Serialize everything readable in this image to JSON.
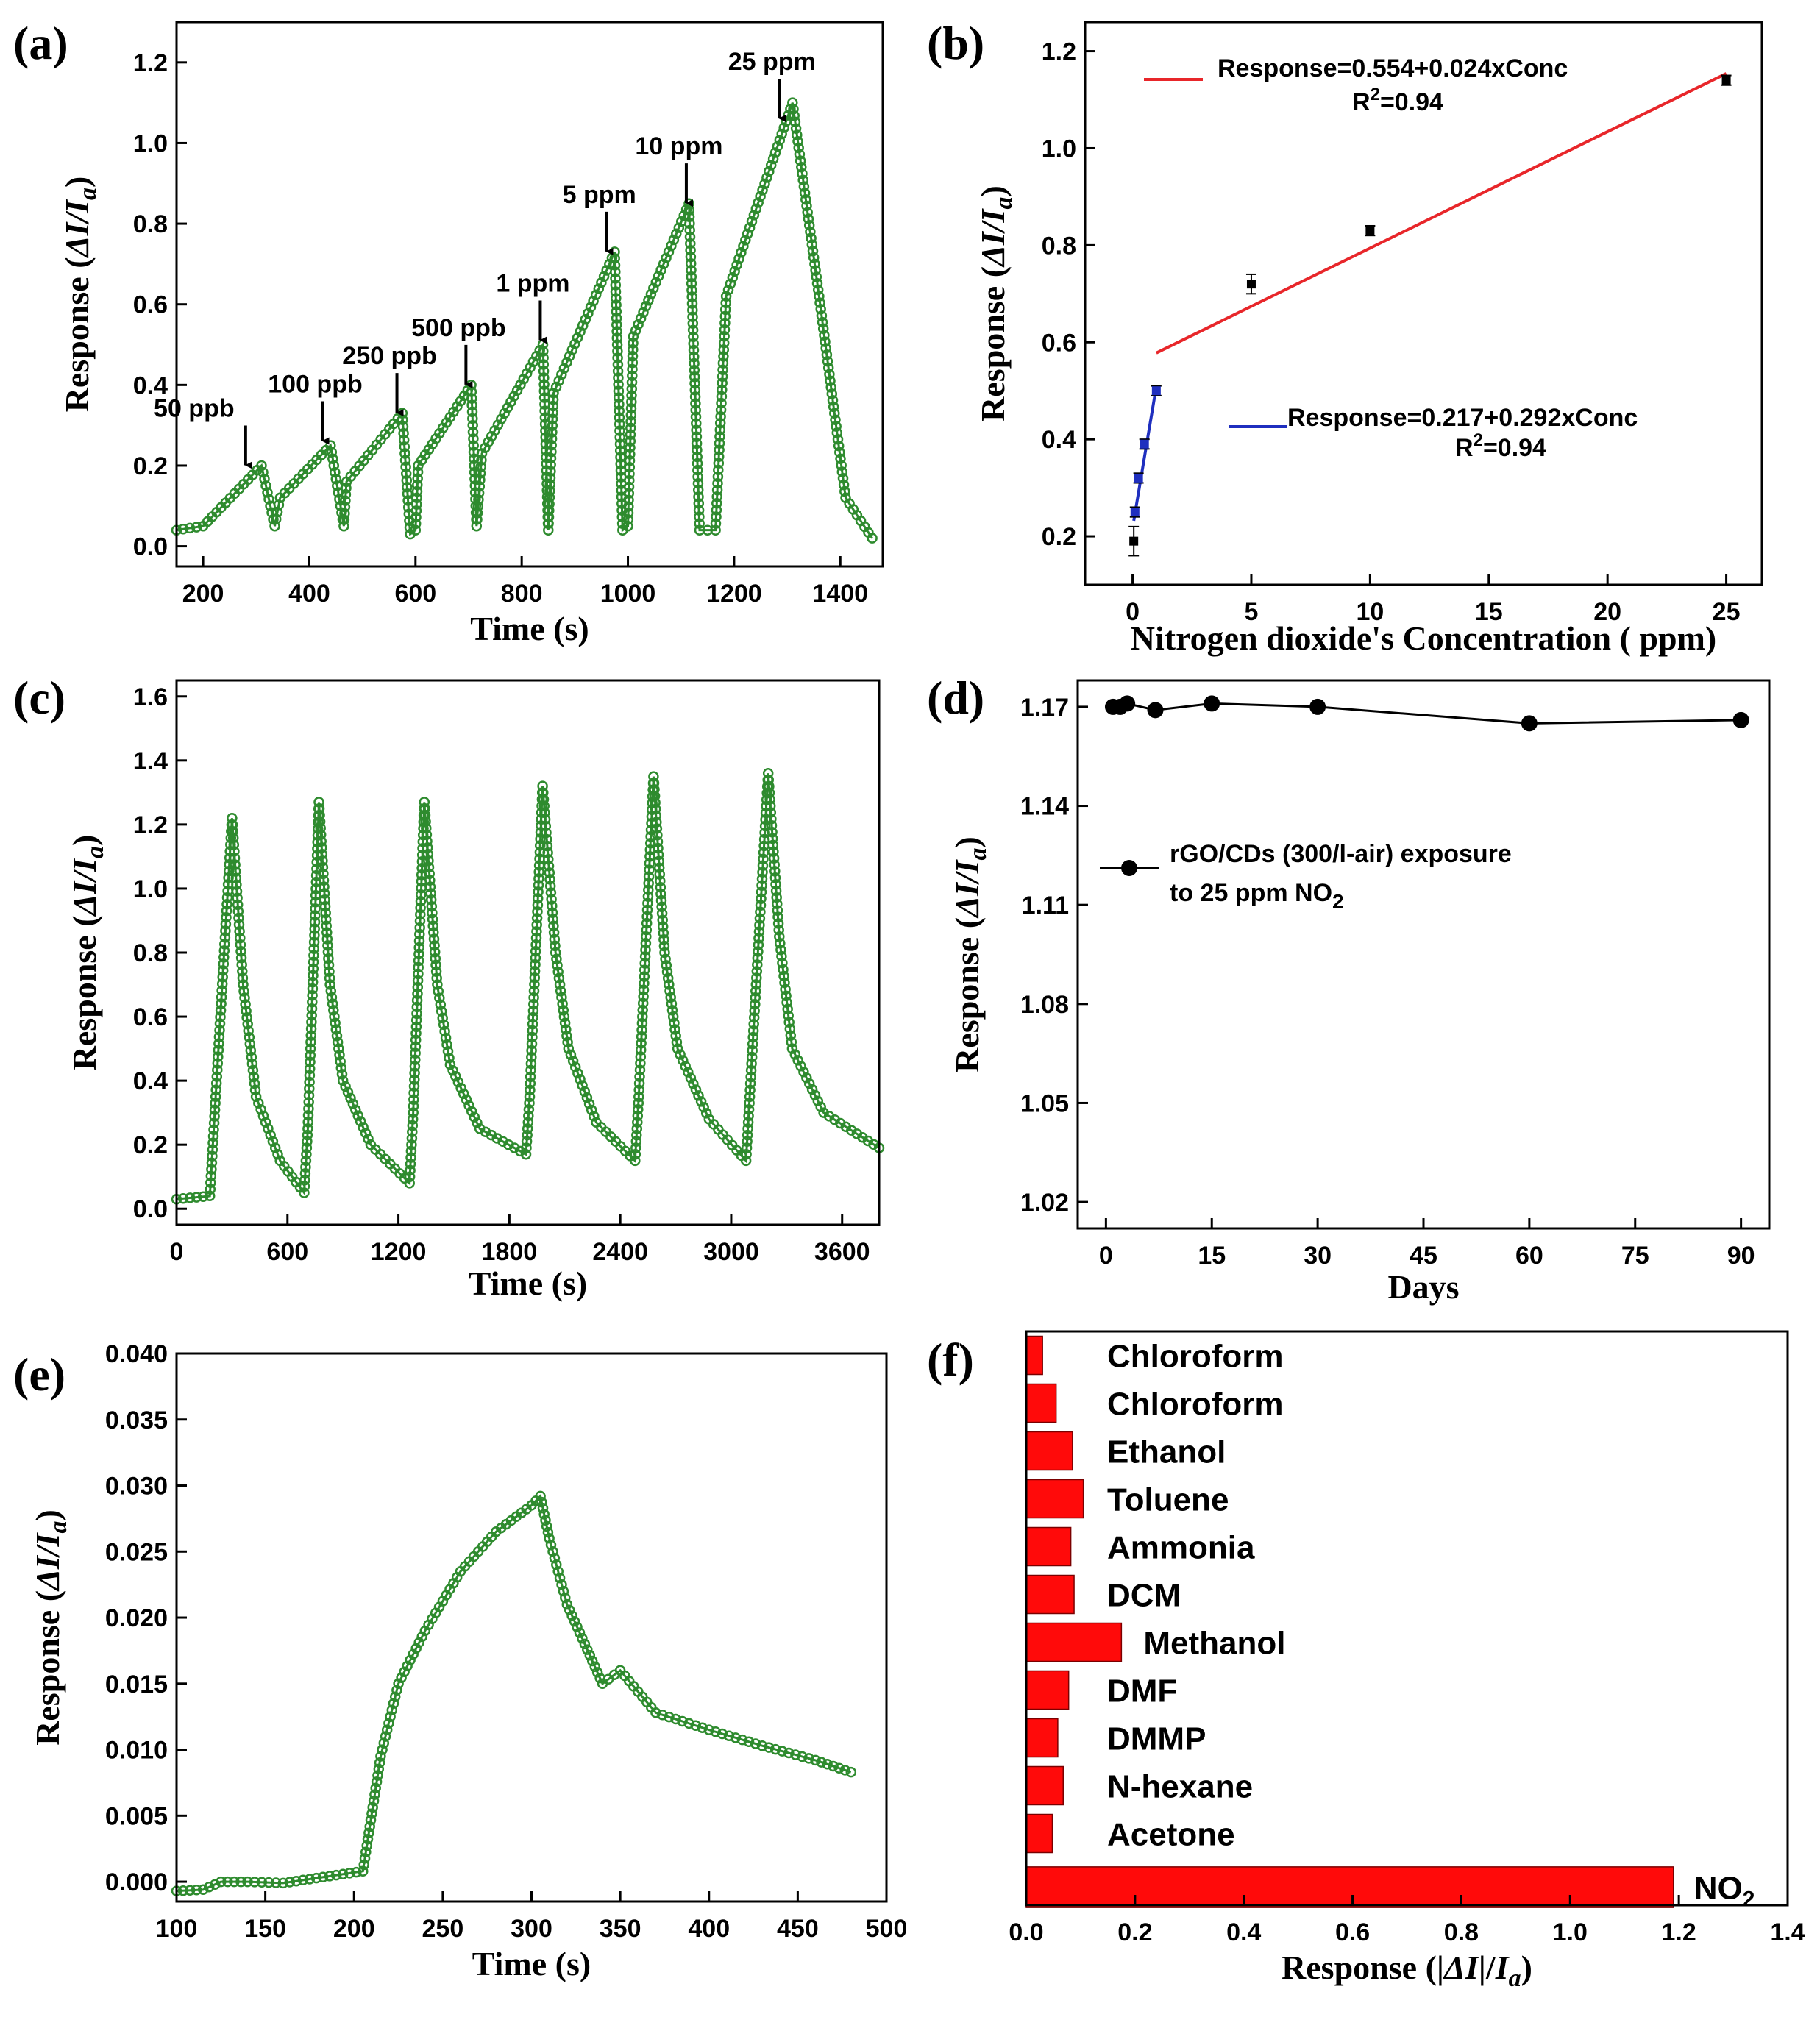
{
  "chart_data": [
    {
      "panel": "(a)",
      "type": "line",
      "xlabel": "Time (s)",
      "ylabel": "Response (ΔI/Ia)",
      "xlim": [
        150,
        1480
      ],
      "ylim": [
        -0.05,
        1.3
      ],
      "xticks": [
        200,
        400,
        600,
        800,
        1000,
        1200,
        1400
      ],
      "yticks": [
        0.0,
        0.2,
        0.4,
        0.6,
        0.8,
        1.0,
        1.2
      ],
      "series": [
        {
          "color": "#2e8b2e",
          "x": [
            150,
            200,
            310,
            335,
            345,
            440,
            465,
            470,
            575,
            590,
            600,
            605,
            705,
            715,
            725,
            840,
            850,
            860,
            975,
            990,
            1000,
            1010,
            1115,
            1135,
            1165,
            1185,
            1310,
            1360,
            1410,
            1460
          ],
          "y": [
            0.04,
            0.05,
            0.2,
            0.05,
            0.12,
            0.25,
            0.05,
            0.16,
            0.33,
            0.03,
            0.04,
            0.2,
            0.4,
            0.05,
            0.23,
            0.5,
            0.04,
            0.38,
            0.73,
            0.04,
            0.05,
            0.52,
            0.85,
            0.04,
            0.04,
            0.62,
            1.1,
            0.62,
            0.12,
            0.02
          ]
        }
      ],
      "annotations": [
        {
          "text": "50 ppb",
          "x": 280,
          "y": 0.19
        },
        {
          "text": "100 ppb",
          "x": 425,
          "y": 0.25
        },
        {
          "text": "250 ppb",
          "x": 565,
          "y": 0.32
        },
        {
          "text": "500 ppb",
          "x": 695,
          "y": 0.39
        },
        {
          "text": "1 ppm",
          "x": 835,
          "y": 0.5
        },
        {
          "text": "5 ppm",
          "x": 960,
          "y": 0.72
        },
        {
          "text": "10 ppm",
          "x": 1110,
          "y": 0.84
        },
        {
          "text": "25 ppm",
          "x": 1285,
          "y": 1.05
        }
      ]
    },
    {
      "panel": "(b)",
      "type": "scatter",
      "xlabel": "Nitrogen dioxide's Concentration ( ppm)",
      "ylabel": "Response (ΔI/Ia)",
      "xlim": [
        -2,
        26.5
      ],
      "ylim": [
        0.1,
        1.26
      ],
      "xticks": [
        0,
        5,
        10,
        15,
        20,
        25
      ],
      "yticks": [
        0.2,
        0.4,
        0.6,
        0.8,
        1.0,
        1.2
      ],
      "points": {
        "x": [
          0.05,
          0.1,
          0.25,
          0.5,
          1.0,
          5,
          10,
          25
        ],
        "y": [
          0.19,
          0.25,
          0.32,
          0.39,
          0.5,
          0.72,
          0.83,
          1.14
        ],
        "err": [
          0.03,
          0.01,
          0.01,
          0.01,
          0.01,
          0.02,
          0.01,
          0.01
        ]
      },
      "fits": [
        {
          "label": "Response=0.554+0.024xConc",
          "r2": "R2=0.94",
          "color": "#e8262a",
          "x": [
            1,
            25
          ],
          "y": [
            0.578,
            1.154
          ]
        },
        {
          "label": "Response=0.217+0.292xConc",
          "r2": "R2=0.94",
          "color": "#1f2fbf",
          "x": [
            0.05,
            1.0
          ],
          "y": [
            0.232,
            0.509
          ]
        }
      ]
    },
    {
      "panel": "(c)",
      "type": "line",
      "xlabel": "Time (s)",
      "ylabel": "Response (ΔI/Ia)",
      "xlim": [
        0,
        3800
      ],
      "ylim": [
        -0.05,
        1.65
      ],
      "xticks": [
        0,
        600,
        1200,
        1800,
        2400,
        3000,
        3600
      ],
      "yticks": [
        0.0,
        0.2,
        0.4,
        0.6,
        0.8,
        1.0,
        1.2,
        1.4,
        1.6
      ],
      "series": [
        {
          "color": "#2e8b2e",
          "x": [
            0,
            180,
            300,
            360,
            430,
            560,
            690,
            710,
            770,
            830,
            900,
            1050,
            1260,
            1280,
            1340,
            1410,
            1480,
            1640,
            1890,
            1910,
            1980,
            2050,
            2120,
            2270,
            2480,
            2500,
            2580,
            2640,
            2710,
            2880,
            3080,
            3100,
            3200,
            3260,
            3330,
            3500,
            3800
          ],
          "y": [
            0.03,
            0.04,
            1.22,
            0.7,
            0.35,
            0.15,
            0.05,
            0.25,
            1.27,
            0.7,
            0.4,
            0.2,
            0.08,
            0.3,
            1.27,
            0.7,
            0.45,
            0.25,
            0.17,
            0.35,
            1.32,
            0.8,
            0.5,
            0.27,
            0.15,
            0.35,
            1.35,
            0.8,
            0.5,
            0.28,
            0.15,
            0.35,
            1.36,
            0.85,
            0.5,
            0.3,
            0.19
          ]
        }
      ]
    },
    {
      "panel": "(d)",
      "type": "line",
      "xlabel": "Days",
      "ylabel": "Response (ΔI/Ia)",
      "xlim": [
        -4,
        94
      ],
      "ylim": [
        1.012,
        1.178
      ],
      "xticks": [
        0,
        15,
        30,
        45,
        60,
        75,
        90
      ],
      "yticks": [
        1.02,
        1.05,
        1.08,
        1.11,
        1.14,
        1.17
      ],
      "legend": {
        "line1": "rGO/CDs (300/l-air) exposure",
        "line2_prefix": "to 25 ppm NO",
        "line2_sub": "2"
      },
      "series": [
        {
          "color": "#000000",
          "x": [
            1,
            2,
            3,
            7,
            15,
            30,
            60,
            90
          ],
          "y": [
            1.17,
            1.17,
            1.171,
            1.169,
            1.171,
            1.17,
            1.165,
            1.166
          ]
        }
      ]
    },
    {
      "panel": "(e)",
      "type": "line",
      "xlabel": "Time (s)",
      "ylabel": "Response (ΔI/Ia)",
      "xlim": [
        100,
        500
      ],
      "ylim": [
        -0.0015,
        0.04
      ],
      "xticks": [
        100,
        150,
        200,
        250,
        300,
        350,
        400,
        450,
        500
      ],
      "yticks": [
        0.0,
        0.005,
        0.01,
        0.015,
        0.02,
        0.025,
        0.03,
        0.035,
        0.04
      ],
      "ytick_labels": [
        "0.000",
        "0.005",
        "0.010",
        "0.015",
        "0.020",
        "0.025",
        "0.030",
        "0.035",
        "0.040"
      ],
      "series": [
        {
          "color": "#2e8b2e",
          "x": [
            100,
            115,
            125,
            140,
            160,
            175,
            190,
            205,
            215,
            225,
            240,
            260,
            280,
            300,
            305,
            310,
            320,
            330,
            340,
            350,
            370,
            400,
            430,
            460,
            480
          ],
          "y": [
            -0.0007,
            -0.0006,
            0.0,
            0.0,
            -0.0001,
            0.0002,
            0.0005,
            0.0008,
            0.0095,
            0.015,
            0.019,
            0.0235,
            0.0265,
            0.0285,
            0.0292,
            0.026,
            0.021,
            0.018,
            0.015,
            0.016,
            0.0128,
            0.0115,
            0.0103,
            0.0092,
            0.0083
          ]
        }
      ]
    },
    {
      "panel": "(f)",
      "type": "bar",
      "orientation": "horizontal",
      "xlabel": "Response (|ΔI|/Ia)",
      "xlim": [
        0,
        1.4
      ],
      "xticks": [
        0.0,
        0.2,
        0.4,
        0.6,
        0.8,
        1.0,
        1.2,
        1.4
      ],
      "color": "#ff0a0a",
      "categories": [
        "Chloroform",
        "Chloroform",
        "Ethanol",
        "Toluene",
        "Ammonia",
        "DCM",
        "Methanol",
        "DMF",
        "DMMP",
        "N-hexane",
        "Acetone",
        "NO2"
      ],
      "values": [
        0.03,
        0.055,
        0.085,
        0.105,
        0.082,
        0.088,
        0.175,
        0.078,
        0.058,
        0.068,
        0.048,
        1.19
      ]
    }
  ]
}
